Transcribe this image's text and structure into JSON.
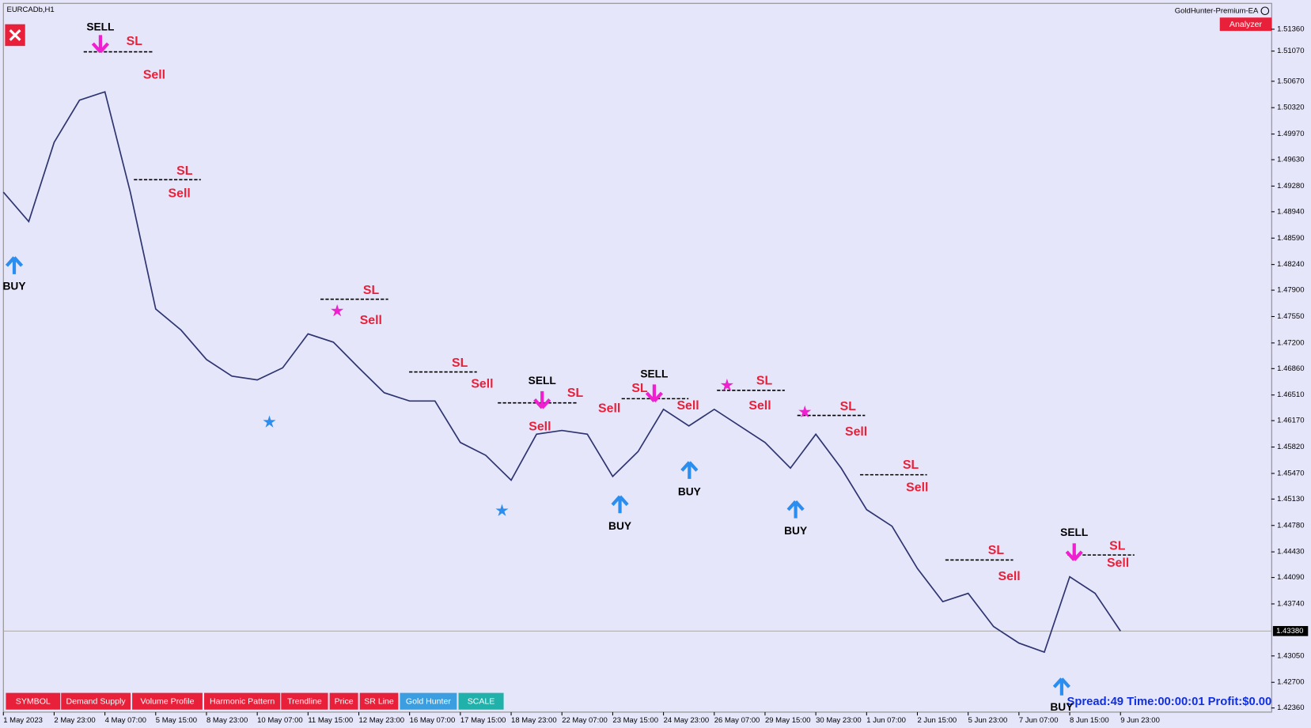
{
  "window": {
    "symbol": "EURCADb,H1",
    "ea_name": "GoldHunter-Premium-EA",
    "analyzer": "Analyzer",
    "status": "Spread:49 Time:00:00:01 Profit:$0.00",
    "buttons": [
      "SYMBOL",
      "Demand Supply",
      "Volume Profile",
      "Harmonic Pattern",
      "Trendline",
      "Price",
      "SR Line",
      "Gold Hunter",
      "SCALE"
    ]
  },
  "chart_data": {
    "type": "line",
    "x": [
      0,
      16,
      32,
      48,
      64,
      80,
      96,
      112,
      128,
      144,
      160,
      176,
      192,
      208,
      224,
      240,
      256,
      272,
      288,
      304,
      320,
      336,
      352,
      368,
      384,
      400,
      416,
      432,
      448,
      464,
      480,
      496,
      512,
      528,
      544,
      560,
      576,
      592,
      608,
      624,
      640,
      656,
      672,
      688,
      704
    ],
    "series": [
      {
        "color": "#2e3470",
        "values": [
          1.492,
          1.4881,
          1.4986,
          1.5042,
          1.5053,
          1.492,
          1.4765,
          1.4737,
          1.4698,
          1.4676,
          1.4671,
          1.4687,
          1.4732,
          1.4721,
          1.4687,
          1.4654,
          1.4643,
          1.4643,
          1.4588,
          1.4571,
          1.4538,
          1.4599,
          1.4604,
          1.4599,
          1.4543,
          1.4576,
          1.4632,
          1.461,
          1.4632,
          1.461,
          1.4588,
          1.4554,
          1.4599,
          1.4554,
          1.4499,
          1.4477,
          1.4421,
          1.4377,
          1.4388,
          1.4344,
          1.4322,
          1.431,
          1.441,
          1.4388,
          1.4338
        ]
      }
    ],
    "xlim": [
      0,
      799
    ],
    "xticks": [
      {
        "value": 0,
        "label": "1 May 2023"
      },
      {
        "value": 32,
        "label": "2 May 23:00"
      },
      {
        "value": 64,
        "label": "4 May 07:00"
      },
      {
        "value": 96,
        "label": "5 May 15:00"
      },
      {
        "value": 128,
        "label": "8 May 23:00"
      },
      {
        "value": 160,
        "label": "10 May 07:00"
      },
      {
        "value": 192,
        "label": "11 May 15:00"
      },
      {
        "value": 224,
        "label": "12 May 23:00"
      },
      {
        "value": 256,
        "label": "16 May 07:00"
      },
      {
        "value": 288,
        "label": "17 May 15:00"
      },
      {
        "value": 320,
        "label": "18 May 23:00"
      },
      {
        "value": 352,
        "label": "22 May 07:00"
      },
      {
        "value": 384,
        "label": "23 May 15:00"
      },
      {
        "value": 416,
        "label": "24 May 23:00"
      },
      {
        "value": 448,
        "label": "26 May 07:00"
      },
      {
        "value": 480,
        "label": "29 May 15:00"
      },
      {
        "value": 512,
        "label": "30 May 23:00"
      },
      {
        "value": 544,
        "label": "1 Jun 07:00"
      },
      {
        "value": 576,
        "label": "2 Jun 15:00"
      },
      {
        "value": 608,
        "label": "5 Jun 23:00"
      },
      {
        "value": 640,
        "label": "7 Jun 07:00"
      },
      {
        "value": 672,
        "label": "8 Jun 15:00"
      },
      {
        "value": 704,
        "label": "9 Jun 23:00"
      }
    ],
    "ylim": [
      1.42305,
      1.51692
    ],
    "yticks": [
      {
        "value": 1.5136,
        "label": "1.51360"
      },
      {
        "value": 1.5107,
        "label": "1.51070"
      },
      {
        "value": 1.5067,
        "label": "1.50670"
      },
      {
        "value": 1.5032,
        "label": "1.50320"
      },
      {
        "value": 1.4997,
        "label": "1.49970"
      },
      {
        "value": 1.4963,
        "label": "1.49630"
      },
      {
        "value": 1.4928,
        "label": "1.49280"
      },
      {
        "value": 1.4894,
        "label": "1.48940"
      },
      {
        "value": 1.4859,
        "label": "1.48590"
      },
      {
        "value": 1.4824,
        "label": "1.48240"
      },
      {
        "value": 1.479,
        "label": "1.47900"
      },
      {
        "value": 1.4755,
        "label": "1.47550"
      },
      {
        "value": 1.472,
        "label": "1.47200"
      },
      {
        "value": 1.4686,
        "label": "1.46860"
      },
      {
        "value": 1.4651,
        "label": "1.46510"
      },
      {
        "value": 1.4617,
        "label": "1.46170"
      },
      {
        "value": 1.4582,
        "label": "1.45820"
      },
      {
        "value": 1.4547,
        "label": "1.45470"
      },
      {
        "value": 1.4513,
        "label": "1.45130"
      },
      {
        "value": 1.4478,
        "label": "1.44780"
      },
      {
        "value": 1.4443,
        "label": "1.44430"
      },
      {
        "value": 1.4409,
        "label": "1.44090"
      },
      {
        "value": 1.4374,
        "label": "1.43740"
      },
      {
        "value": 1.4305,
        "label": "1.43050"
      },
      {
        "value": 1.427,
        "label": "1.42700"
      },
      {
        "value": 1.4236,
        "label": "1.42360"
      }
    ],
    "current_price": {
      "value": 1.4338,
      "label": "1.43380"
    },
    "annotations": [
      "SELL",
      "SL",
      "Sell",
      "BUY",
      "SL",
      "Sell",
      "SL",
      "Sell",
      "SL",
      "Sell",
      "SELL",
      "SL",
      "Sell",
      "Sell",
      "BUY",
      "SELL",
      "SL",
      "Sell",
      "BUY",
      "SL",
      "Sell",
      "BUY",
      "SL",
      "Sell",
      "SL",
      "Sell",
      "SL",
      "Sell",
      "SELL",
      "SL",
      "Sell",
      "BUY"
    ]
  }
}
